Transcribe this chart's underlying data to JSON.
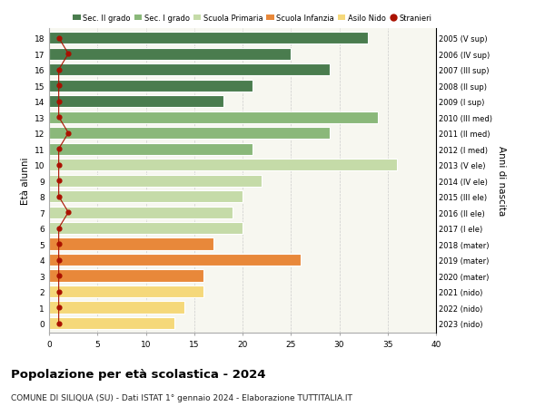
{
  "ages": [
    0,
    1,
    2,
    3,
    4,
    5,
    6,
    7,
    8,
    9,
    10,
    11,
    12,
    13,
    14,
    15,
    16,
    17,
    18
  ],
  "values": [
    13,
    14,
    16,
    16,
    26,
    17,
    20,
    19,
    20,
    22,
    36,
    21,
    29,
    34,
    18,
    21,
    29,
    25,
    33
  ],
  "stranieri": [
    1,
    1,
    1,
    1,
    1,
    1,
    1,
    2,
    1,
    1,
    1,
    1,
    2,
    1,
    1,
    1,
    1,
    2,
    1
  ],
  "right_labels": [
    "2023 (nido)",
    "2022 (nido)",
    "2021 (nido)",
    "2020 (mater)",
    "2019 (mater)",
    "2018 (mater)",
    "2017 (I ele)",
    "2016 (II ele)",
    "2015 (III ele)",
    "2014 (IV ele)",
    "2013 (V ele)",
    "2012 (I med)",
    "2011 (II med)",
    "2010 (III med)",
    "2009 (I sup)",
    "2008 (II sup)",
    "2007 (III sup)",
    "2006 (IV sup)",
    "2005 (V sup)"
  ],
  "bar_colors": [
    "#f5d87a",
    "#f5d87a",
    "#f5d87a",
    "#e8883a",
    "#e8883a",
    "#e8883a",
    "#c5dba8",
    "#c5dba8",
    "#c5dba8",
    "#c5dba8",
    "#c5dba8",
    "#8ab87a",
    "#8ab87a",
    "#8ab87a",
    "#4a7c4e",
    "#4a7c4e",
    "#4a7c4e",
    "#4a7c4e",
    "#4a7c4e"
  ],
  "legend_labels": [
    "Sec. II grado",
    "Sec. I grado",
    "Scuola Primaria",
    "Scuola Infanzia",
    "Asilo Nido",
    "Stranieri"
  ],
  "legend_colors": [
    "#4a7c4e",
    "#8ab87a",
    "#c5dba8",
    "#e8883a",
    "#f5d87a",
    "#cc2200"
  ],
  "ylabel": "Età alunni",
  "right_ylabel": "Anni di nascita",
  "title": "Popolazione per età scolastica - 2024",
  "subtitle": "COMUNE DI SILIQUA (SU) - Dati ISTAT 1° gennaio 2024 - Elaborazione TUTTITALIA.IT",
  "xlim": [
    0,
    40
  ],
  "xticks": [
    0,
    5,
    10,
    15,
    20,
    25,
    30,
    35,
    40
  ],
  "stranieri_color": "#aa1100",
  "stranieri_line_color": "#aa1100",
  "background_color": "#ffffff",
  "plot_bg": "#f7f7f0"
}
